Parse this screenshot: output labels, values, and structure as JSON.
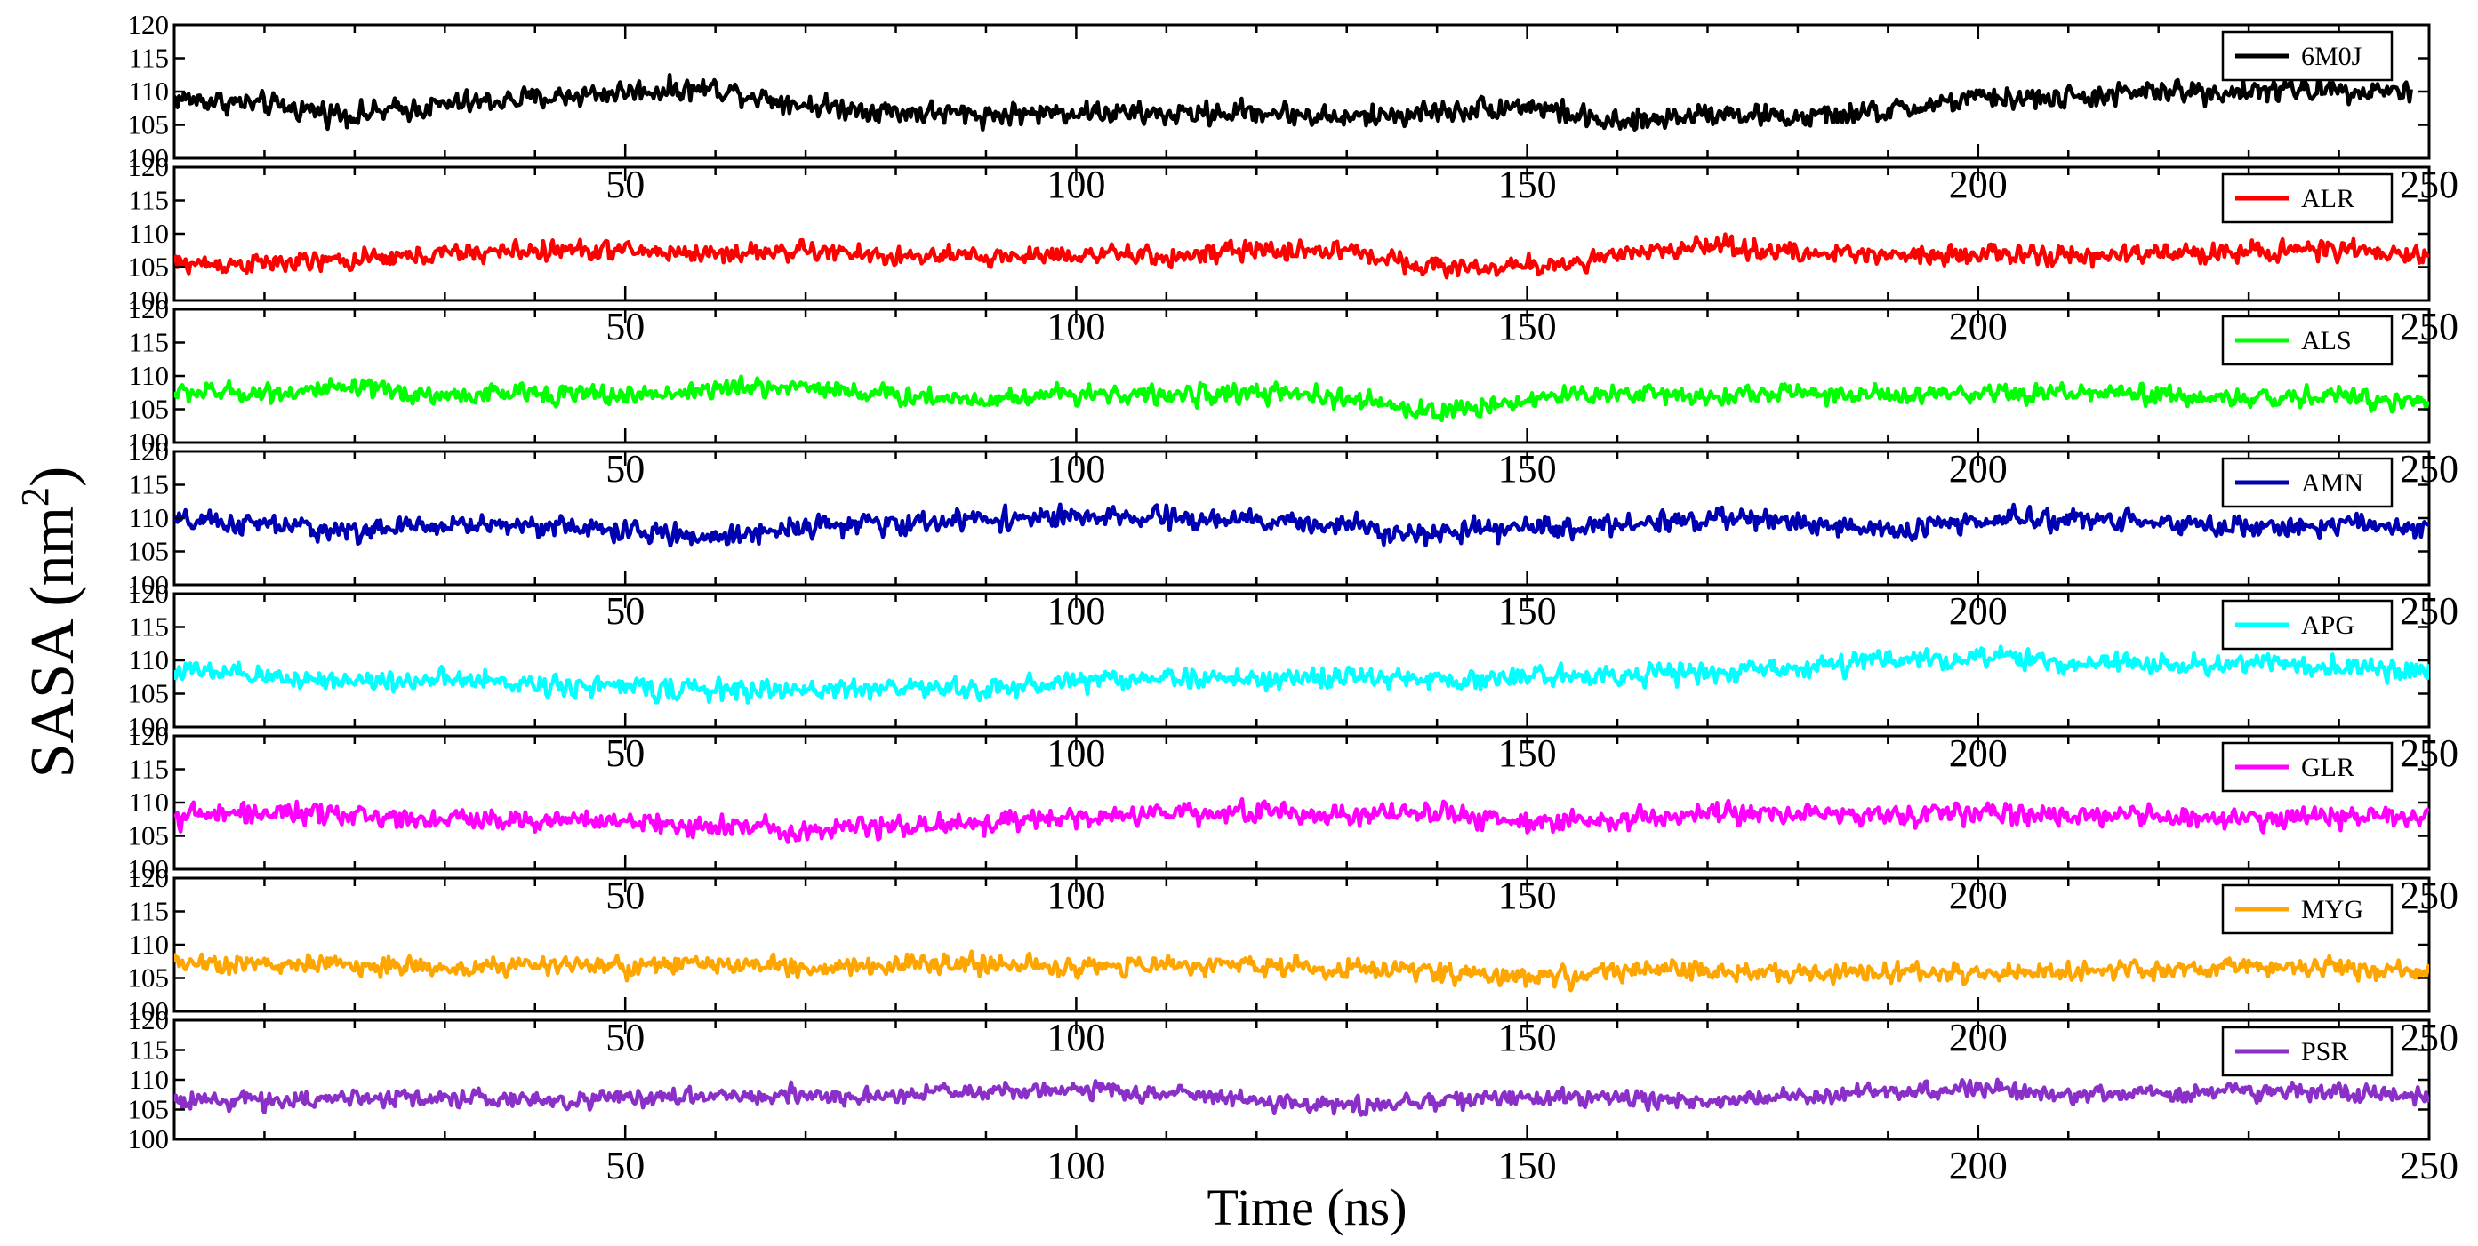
{
  "chart_data": {
    "type": "line",
    "title": "",
    "xlabel": "Time (ns)",
    "ylabel": "SASA (nm",
    "ylabel_superscript": "2",
    "ylabel_suffix": ")",
    "xlim": [
      0,
      250
    ],
    "ylim": [
      100,
      120
    ],
    "x_ticks": [
      50,
      100,
      150,
      200,
      250
    ],
    "y_ticks": [
      100,
      105,
      110,
      115,
      120
    ],
    "legend_placement": "top-right of each panel",
    "panels": [
      {
        "name": "6M0J",
        "color": "#000000",
        "mean": 108.6,
        "noise": 1.5,
        "x": [
          0,
          10,
          20,
          30,
          40,
          50,
          60,
          70,
          80,
          90,
          100,
          110,
          120,
          130,
          140,
          150,
          160,
          170,
          180,
          190,
          200,
          210,
          220,
          230,
          240,
          248
        ],
        "y": [
          109,
          108,
          106.5,
          108,
          109,
          110,
          110.5,
          108,
          107,
          106.5,
          107,
          106.5,
          107,
          106,
          107,
          108,
          105,
          107,
          106,
          107,
          109,
          109,
          110,
          110,
          110.5,
          110
        ]
      },
      {
        "name": "ALR",
        "color": "#ff0000",
        "mean": 106.5,
        "noise": 1.3,
        "x": [
          0,
          10,
          20,
          30,
          40,
          50,
          60,
          70,
          80,
          90,
          100,
          110,
          120,
          130,
          140,
          150,
          160,
          170,
          180,
          190,
          200,
          210,
          220,
          230,
          240,
          250
        ],
        "y": [
          105.5,
          105.5,
          106,
          107,
          107.5,
          107.5,
          107,
          107.5,
          106.5,
          106.5,
          107,
          106.5,
          107.5,
          107.5,
          105,
          105,
          106.5,
          108.5,
          107,
          107,
          107,
          106.5,
          107,
          107.5,
          107.5,
          106.5
        ]
      },
      {
        "name": "ALS",
        "color": "#00ff00",
        "mean": 107.0,
        "noise": 1.3,
        "x": [
          0,
          10,
          20,
          30,
          40,
          50,
          60,
          70,
          80,
          90,
          100,
          110,
          120,
          130,
          140,
          150,
          160,
          170,
          180,
          190,
          200,
          210,
          220,
          230,
          240,
          250
        ],
        "y": [
          107.5,
          107.5,
          108,
          107,
          107.5,
          107,
          108,
          108.5,
          107,
          106.5,
          107.5,
          107,
          107.5,
          106.5,
          104.5,
          106.5,
          107.5,
          107,
          107.5,
          107,
          107,
          107.5,
          107,
          106.5,
          107,
          106
        ]
      },
      {
        "name": "AMN",
        "color": "#0000b3",
        "mean": 108.9,
        "noise": 1.4,
        "x": [
          0,
          10,
          20,
          30,
          40,
          50,
          60,
          70,
          80,
          90,
          100,
          110,
          120,
          130,
          140,
          150,
          160,
          170,
          180,
          190,
          200,
          210,
          220,
          230,
          240,
          250
        ],
        "y": [
          109.5,
          109,
          108,
          109,
          109,
          108,
          107,
          109,
          109,
          110,
          110,
          110,
          109.5,
          109,
          107.5,
          108.5,
          109,
          110,
          109.5,
          108,
          109.5,
          110,
          109.5,
          108.5,
          109,
          108.5
        ]
      },
      {
        "name": "APG",
        "color": "#00ffff",
        "mean": 107.5,
        "noise": 1.4,
        "x": [
          0,
          10,
          20,
          30,
          40,
          50,
          60,
          70,
          80,
          90,
          100,
          110,
          120,
          130,
          140,
          150,
          160,
          170,
          180,
          190,
          200,
          210,
          220,
          230,
          240,
          250
        ],
        "y": [
          108.5,
          107.5,
          107,
          107,
          106.5,
          106,
          105.5,
          105.5,
          106,
          105.5,
          107,
          107.5,
          107,
          107.5,
          107,
          107.5,
          108,
          108,
          109,
          110,
          110.5,
          109.5,
          109.5,
          109.5,
          109,
          108.5
        ]
      },
      {
        "name": "GLR",
        "color": "#ff00ff",
        "mean": 107.5,
        "noise": 1.4,
        "x": [
          0,
          10,
          20,
          30,
          40,
          50,
          60,
          70,
          80,
          90,
          100,
          110,
          120,
          130,
          140,
          150,
          160,
          170,
          180,
          190,
          200,
          210,
          220,
          230,
          240,
          250
        ],
        "y": [
          108,
          108.5,
          108,
          107.5,
          107.5,
          107,
          106.5,
          106,
          106.5,
          107,
          107.5,
          108.5,
          108.5,
          108,
          108.5,
          107,
          107.5,
          108,
          108.5,
          108,
          108.5,
          108,
          108,
          107.5,
          108,
          108
        ]
      },
      {
        "name": "MYG",
        "color": "#ffa500",
        "mean": 106.5,
        "noise": 1.3,
        "x": [
          0,
          10,
          20,
          30,
          40,
          50,
          60,
          70,
          80,
          90,
          100,
          110,
          120,
          130,
          140,
          150,
          160,
          170,
          180,
          190,
          200,
          210,
          220,
          230,
          240,
          250
        ],
        "y": [
          107.5,
          107,
          107,
          106.5,
          107,
          106.5,
          107,
          106.5,
          107,
          107,
          106.5,
          107,
          107,
          106.5,
          106,
          105,
          106,
          106,
          105.5,
          106,
          106,
          106,
          106,
          106.5,
          106.5,
          105.5
        ]
      },
      {
        "name": "PSR",
        "color": "#8b2fc9",
        "mean": 106.8,
        "noise": 1.3,
        "x": [
          0,
          10,
          20,
          30,
          40,
          50,
          60,
          70,
          80,
          90,
          100,
          110,
          120,
          130,
          140,
          150,
          160,
          170,
          180,
          190,
          200,
          210,
          220,
          230,
          240,
          250
        ],
        "y": [
          106.5,
          106.5,
          107,
          107,
          106.5,
          107,
          107.5,
          107,
          107.5,
          108,
          108.5,
          107.5,
          106.5,
          105.5,
          106.5,
          107,
          107,
          106.5,
          107,
          108,
          108.5,
          107.5,
          107.5,
          108,
          108,
          107
        ]
      }
    ]
  }
}
